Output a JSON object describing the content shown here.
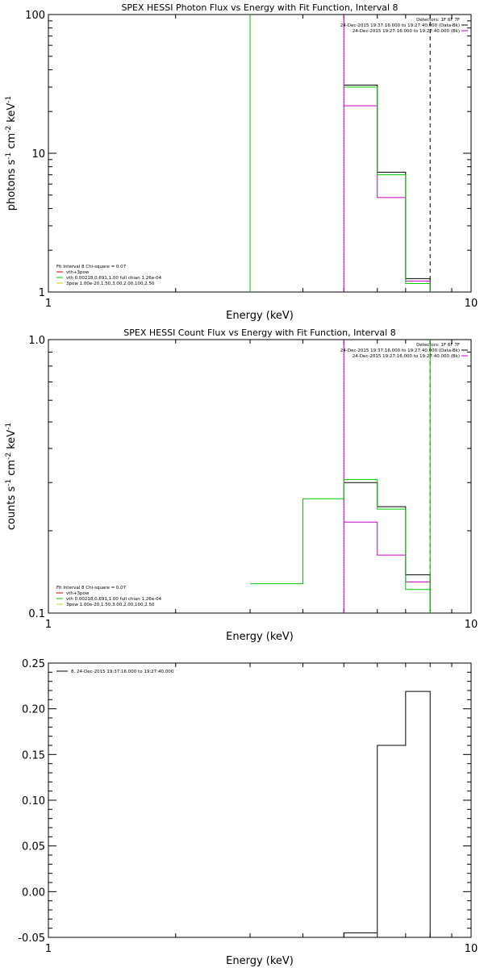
{
  "chart_data": [
    {
      "type": "line",
      "title": "SPEX HESSI Photon Flux vs Energy with Fit Function, Interval 8",
      "xlabel": "Energy (keV)",
      "ylabel_parts": [
        "photons s",
        "-1",
        " cm",
        "-2",
        " keV",
        "-1"
      ],
      "xscale": "log",
      "yscale": "log",
      "xlim": [
        1,
        10
      ],
      "ylim": [
        1,
        100
      ],
      "x_ticks": [
        {
          "v": 1,
          "label": "1"
        },
        {
          "v": 10,
          "label": "10"
        }
      ],
      "y_ticks": [
        {
          "v": 1,
          "label": "1"
        },
        {
          "v": 10,
          "label": "10"
        },
        {
          "v": 100,
          "label": "100"
        }
      ],
      "legend_top": [
        "Detectors: 1F 6F 7F",
        "24-Dec-2015 19:37:16.000 to 19:27:40.000 (Data-Bk)",
        "24-Dec-2015 19:27:16.000 to 19:27:40.000 (Bk)"
      ],
      "legend_top_colors": [
        "",
        "#000000",
        "#cc00cc"
      ],
      "legend_bottom": [
        "Fit Interval 8   Chi-square = 0.07",
        "vth+3pow",
        "vth 0.00218,0.691,1.00  full chian 1.26e-04",
        "3pow 1.00e-20,1.50,3.00,2.00,100,2.50"
      ],
      "legend_bottom_colors": [
        "",
        "#cc0000",
        "#00cc00",
        "#cccc00"
      ],
      "vlines": [
        {
          "x": 5.0,
          "style": "dotted"
        },
        {
          "x": 8.0,
          "style": "dashed"
        }
      ],
      "series": [
        {
          "color": "#000000",
          "steps": [
            [
              5.0,
              6.0,
              31
            ],
            [
              6.0,
              7.0,
              7.3
            ],
            [
              7.0,
              8.0,
              1.25
            ]
          ]
        },
        {
          "color": "#cc00cc",
          "steps": [
            [
              5.0,
              6.0,
              22
            ],
            [
              6.0,
              7.0,
              4.8
            ],
            [
              7.0,
              8.0,
              1.2
            ]
          ],
          "vline": 5.0
        },
        {
          "color": "#00cc00",
          "steps": [
            [
              5.0,
              6.0,
              30
            ],
            [
              6.0,
              7.0,
              7.0
            ],
            [
              7.0,
              8.0,
              1.15
            ]
          ],
          "vline": 3.0
        }
      ]
    },
    {
      "type": "line",
      "title": "SPEX HESSI Count Flux vs Energy with Fit Function, Interval 8",
      "xlabel": "Energy (keV)",
      "ylabel_parts": [
        "counts s",
        "-1",
        " cm",
        "-2",
        " keV",
        "-1"
      ],
      "xscale": "log",
      "yscale": "log",
      "xlim": [
        1,
        10
      ],
      "ylim": [
        0.1,
        1.0
      ],
      "x_ticks": [
        {
          "v": 1,
          "label": "1"
        },
        {
          "v": 10,
          "label": "10"
        }
      ],
      "y_ticks": [
        {
          "v": 0.1,
          "label": "0.1"
        },
        {
          "v": 1.0,
          "label": "1.0"
        }
      ],
      "legend_top": [
        "Detectors: 1F 6F 7F",
        "24-Dec-2015 19:37:16.000 to 19:27:40.000 (Data-Bk)",
        "24-Dec-2015 19:27:16.000 to 19:27:40.000 (Bk)"
      ],
      "legend_top_colors": [
        "",
        "#000000",
        "#cc00cc"
      ],
      "legend_bottom": [
        "Fit Interval 8   Chi-square = 0.07",
        "vth+3pow",
        "vth 0.00218,0.691,1.00  full chian 1.26e-04",
        "3pow 1.00e-20,1.50,3.00,2.00,100,2.50"
      ],
      "legend_bottom_colors": [
        "",
        "#cc0000",
        "#00cc00",
        "#cccc00"
      ],
      "vlines": [
        {
          "x": 5.0,
          "style": "dotted"
        },
        {
          "x": 8.0,
          "style": "dashed"
        }
      ],
      "series": [
        {
          "color": "#000000",
          "steps": [
            [
              5.0,
              6.0,
              0.3
            ],
            [
              6.0,
              7.0,
              0.245
            ],
            [
              7.0,
              8.0,
              0.138
            ]
          ]
        },
        {
          "color": "#cc00cc",
          "steps": [
            [
              5.0,
              6.0,
              0.215
            ],
            [
              6.0,
              7.0,
              0.163
            ],
            [
              7.0,
              8.0,
              0.13
            ]
          ],
          "vline": 5.0
        },
        {
          "color": "#00cc00",
          "steps": [
            [
              3.0,
              4.0,
              0.128
            ],
            [
              4.0,
              5.0,
              0.262
            ],
            [
              5.0,
              6.0,
              0.308
            ],
            [
              6.0,
              7.0,
              0.24
            ],
            [
              7.0,
              8.0,
              0.122
            ]
          ],
          "vline": 8.0
        }
      ]
    },
    {
      "type": "line",
      "title": "",
      "xlabel": "Energy (keV)",
      "ylabel_parts": [],
      "xscale": "log",
      "yscale": "linear",
      "xlim": [
        1,
        10
      ],
      "ylim": [
        -0.05,
        0.25
      ],
      "x_ticks": [
        {
          "v": 1,
          "label": "1"
        },
        {
          "v": 10,
          "label": "10"
        }
      ],
      "y_ticks": [
        {
          "v": -0.05,
          "label": "-0.05"
        },
        {
          "v": 0.0,
          "label": "0.00"
        },
        {
          "v": 0.05,
          "label": "0.05"
        },
        {
          "v": 0.1,
          "label": "0.10"
        },
        {
          "v": 0.15,
          "label": "0.15"
        },
        {
          "v": 0.2,
          "label": "0.20"
        },
        {
          "v": 0.25,
          "label": "0.25"
        }
      ],
      "legend_top": [],
      "legend_top_colors": [],
      "legend_bottom": [],
      "legend_bottom_colors": [],
      "legend_upper_left": "8, 24-Dec-2015 19:37:16.000 to 19:27:40.000",
      "vlines": [],
      "series": [
        {
          "color": "#000000",
          "steps": [
            [
              5.0,
              6.0,
              -0.045
            ],
            [
              6.0,
              7.0,
              0.16
            ],
            [
              7.0,
              8.0,
              0.219
            ]
          ],
          "drop_to_base": true
        }
      ]
    }
  ]
}
